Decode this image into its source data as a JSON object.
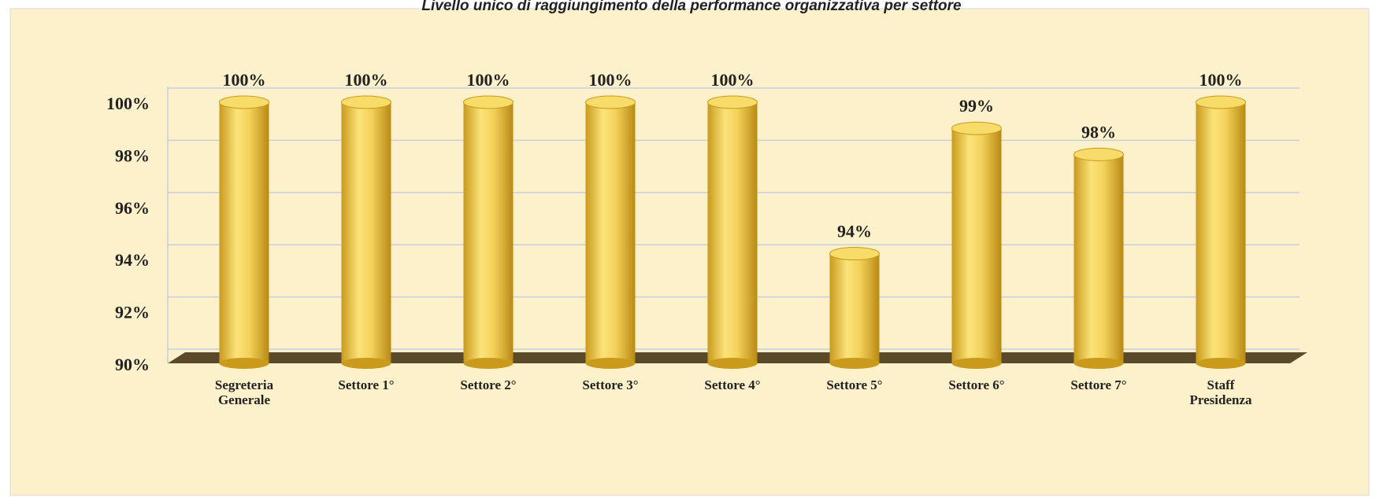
{
  "chart_data": {
    "type": "bar",
    "title": "Livello unico di raggiungimento della performance organizzativa per settore",
    "categories": [
      "Segreteria\nGenerale",
      "Settore 1°",
      "Settore 2°",
      "Settore 3°",
      "Settore 4°",
      "Settore 5°",
      "Settore 6°",
      "Settore 7°",
      "Staff\nPresidenza"
    ],
    "values": [
      100,
      100,
      100,
      100,
      100,
      94.2,
      99,
      98,
      100
    ],
    "value_labels": [
      "100%",
      "100%",
      "100%",
      "100%",
      "100%",
      "94%",
      "99%",
      "98%",
      "100%"
    ],
    "color": "#f2cf55",
    "ylim": [
      90,
      100
    ],
    "yticks": [
      {
        "value": 90,
        "label": "90%"
      },
      {
        "value": 92,
        "label": "92%"
      },
      {
        "value": 94,
        "label": "94%"
      },
      {
        "value": 96,
        "label": "96%"
      },
      {
        "value": 98,
        "label": "98%"
      },
      {
        "value": 100,
        "label": "100%"
      }
    ],
    "grid": true
  }
}
